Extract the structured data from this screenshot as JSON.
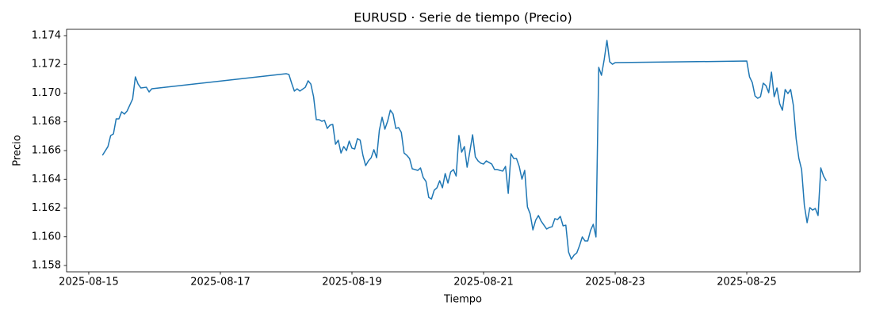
{
  "chart_data": {
    "type": "line",
    "title": "EURUSD · Serie de tiempo (Precio)",
    "xlabel": "Tiempo",
    "ylabel": "Precio",
    "color": "#1f77b4",
    "x": [
      "2025-08-15 05:00",
      "2025-08-15 07:00",
      "2025-08-15 08:00",
      "2025-08-15 09:00",
      "2025-08-15 10:00",
      "2025-08-15 11:00",
      "2025-08-15 12:00",
      "2025-08-15 13:00",
      "2025-08-15 14:00",
      "2025-08-15 16:00",
      "2025-08-15 17:00",
      "2025-08-15 18:00",
      "2025-08-15 19:00",
      "2025-08-15 21:00",
      "2025-08-15 22:00",
      "2025-08-15 23:00",
      "2025-08-18 00:00",
      "2025-08-18 01:00",
      "2025-08-18 02:00",
      "2025-08-18 03:00",
      "2025-08-18 04:00",
      "2025-08-18 05:00",
      "2025-08-18 07:00",
      "2025-08-18 08:00",
      "2025-08-18 09:00",
      "2025-08-18 10:00",
      "2025-08-18 11:00",
      "2025-08-18 12:00",
      "2025-08-18 13:00",
      "2025-08-18 14:00",
      "2025-08-18 15:00",
      "2025-08-18 16:00",
      "2025-08-18 17:00",
      "2025-08-18 18:00",
      "2025-08-18 19:00",
      "2025-08-18 20:00",
      "2025-08-18 21:00",
      "2025-08-18 22:00",
      "2025-08-18 23:00",
      "2025-08-19 00:00",
      "2025-08-19 01:00",
      "2025-08-19 02:00",
      "2025-08-19 03:00",
      "2025-08-19 04:00",
      "2025-08-19 05:00",
      "2025-08-19 06:00",
      "2025-08-19 07:00",
      "2025-08-19 08:00",
      "2025-08-19 09:00",
      "2025-08-19 10:00",
      "2025-08-19 11:00",
      "2025-08-19 12:00",
      "2025-08-19 13:00",
      "2025-08-19 14:00",
      "2025-08-19 15:00",
      "2025-08-19 16:00",
      "2025-08-19 17:00",
      "2025-08-19 18:00",
      "2025-08-19 19:00",
      "2025-08-19 20:00",
      "2025-08-19 21:00",
      "2025-08-19 22:00",
      "2025-08-19 23:00",
      "2025-08-20 00:00",
      "2025-08-20 01:00",
      "2025-08-20 02:00",
      "2025-08-20 03:00",
      "2025-08-20 04:00",
      "2025-08-20 05:00",
      "2025-08-20 06:00",
      "2025-08-20 07:00",
      "2025-08-20 08:00",
      "2025-08-20 09:00",
      "2025-08-20 10:00",
      "2025-08-20 11:00",
      "2025-08-20 12:00",
      "2025-08-20 13:00",
      "2025-08-20 14:00",
      "2025-08-20 15:00",
      "2025-08-20 16:00",
      "2025-08-20 17:00",
      "2025-08-20 18:00",
      "2025-08-20 19:00",
      "2025-08-20 20:00",
      "2025-08-20 21:00",
      "2025-08-20 22:00",
      "2025-08-20 23:00",
      "2025-08-21 00:00",
      "2025-08-21 01:00",
      "2025-08-21 03:00",
      "2025-08-21 04:00",
      "2025-08-21 05:00",
      "2025-08-21 06:00",
      "2025-08-21 07:00",
      "2025-08-21 08:00",
      "2025-08-21 09:00",
      "2025-08-21 10:00",
      "2025-08-21 11:00",
      "2025-08-21 12:00",
      "2025-08-21 13:00",
      "2025-08-21 14:00",
      "2025-08-21 15:00",
      "2025-08-21 16:00",
      "2025-08-21 17:00",
      "2025-08-21 18:00",
      "2025-08-21 19:00",
      "2025-08-21 20:00",
      "2025-08-21 21:00",
      "2025-08-21 23:00",
      "2025-08-22 00:00",
      "2025-08-22 01:00",
      "2025-08-22 02:00",
      "2025-08-22 03:00",
      "2025-08-22 04:00",
      "2025-08-22 05:00",
      "2025-08-22 06:00",
      "2025-08-22 07:00",
      "2025-08-22 08:00",
      "2025-08-22 09:00",
      "2025-08-22 10:00",
      "2025-08-22 11:00",
      "2025-08-22 12:00",
      "2025-08-22 13:00",
      "2025-08-22 14:00",
      "2025-08-22 15:00",
      "2025-08-22 16:00",
      "2025-08-22 17:00",
      "2025-08-22 18:00",
      "2025-08-22 19:00",
      "2025-08-22 20:00",
      "2025-08-22 21:00",
      "2025-08-22 22:00",
      "2025-08-22 23:00",
      "2025-08-23 00:00",
      "2025-08-25 00:00",
      "2025-08-25 01:00",
      "2025-08-25 02:00",
      "2025-08-25 03:00",
      "2025-08-25 04:00",
      "2025-08-25 05:00",
      "2025-08-25 06:00",
      "2025-08-25 07:00",
      "2025-08-25 08:00",
      "2025-08-25 09:00",
      "2025-08-25 10:00",
      "2025-08-25 11:00",
      "2025-08-25 12:00",
      "2025-08-25 13:00",
      "2025-08-25 14:00",
      "2025-08-25 15:00",
      "2025-08-25 16:00",
      "2025-08-25 17:00",
      "2025-08-25 18:00",
      "2025-08-25 19:00",
      "2025-08-25 20:00",
      "2025-08-25 21:00",
      "2025-08-25 22:00",
      "2025-08-25 23:00",
      "2025-08-26 00:00",
      "2025-08-26 01:00",
      "2025-08-26 02:00",
      "2025-08-26 03:00",
      "2025-08-26 04:00",
      "2025-08-26 05:00"
    ],
    "values": [
      1.16567,
      1.16628,
      1.16705,
      1.16716,
      1.16821,
      1.16821,
      1.1687,
      1.16854,
      1.16876,
      1.16959,
      1.17113,
      1.17063,
      1.17036,
      1.17041,
      1.17008,
      1.1703,
      1.17135,
      1.1713,
      1.17069,
      1.17014,
      1.1703,
      1.17014,
      1.17041,
      1.17086,
      1.17063,
      1.16975,
      1.16815,
      1.16815,
      1.16804,
      1.1681,
      1.16754,
      1.16777,
      1.16782,
      1.16644,
      1.16672,
      1.16583,
      1.16628,
      1.166,
      1.16666,
      1.16617,
      1.16611,
      1.16683,
      1.16672,
      1.16567,
      1.16495,
      1.16528,
      1.1655,
      1.16606,
      1.1655,
      1.16743,
      1.16832,
      1.16749,
      1.16804,
      1.16881,
      1.16854,
      1.16754,
      1.1676,
      1.16727,
      1.16583,
      1.16567,
      1.16545,
      1.16473,
      1.16468,
      1.16462,
      1.16479,
      1.16412,
      1.16385,
      1.16274,
      1.16263,
      1.16324,
      1.16341,
      1.1639,
      1.16341,
      1.1644,
      1.16374,
      1.16451,
      1.16468,
      1.16423,
      1.16705,
      1.16589,
      1.16628,
      1.16484,
      1.16594,
      1.1671,
      1.16556,
      1.16528,
      1.16512,
      1.16506,
      1.16528,
      1.16506,
      1.16468,
      1.16468,
      1.16462,
      1.16457,
      1.1649,
      1.16302,
      1.16578,
      1.16545,
      1.16545,
      1.1649,
      1.16401,
      1.16462,
      1.16208,
      1.16159,
      1.16048,
      1.16115,
      1.16148,
      1.16109,
      1.16054,
      1.16065,
      1.1607,
      1.16126,
      1.1612,
      1.16142,
      1.16076,
      1.16081,
      1.15894,
      1.15844,
      1.15872,
      1.15888,
      1.15938,
      1.15999,
      1.15971,
      1.15971,
      1.16043,
      1.16087,
      1.15999,
      1.17179,
      1.17124,
      1.17234,
      1.17367,
      1.17218,
      1.17201,
      1.17212,
      1.17223,
      1.17113,
      1.17074,
      1.16981,
      1.16964,
      1.16975,
      1.17069,
      1.17052,
      1.17003,
      1.17146,
      1.16975,
      1.17036,
      1.16926,
      1.16881,
      1.17025,
      1.16997,
      1.17025,
      1.16914,
      1.16683,
      1.16545,
      1.16468,
      1.16219,
      1.16098,
      1.16203,
      1.16186,
      1.16197,
      1.16148,
      1.16479,
      1.16423,
      1.1639
    ],
    "xlim": [
      "2025-08-14 15:55",
      "2025-08-26 17:20"
    ],
    "xticks": [
      "2025-08-15",
      "2025-08-17",
      "2025-08-19",
      "2025-08-21",
      "2025-08-23",
      "2025-08-25"
    ],
    "ylim": [
      1.15756,
      1.17444
    ],
    "yticks": [
      1.158,
      {
        "value": 1.16,
        "label": "1.160"
      },
      1.162,
      1.164,
      1.166,
      1.168,
      {
        "value": 1.17,
        "label": "1.170"
      },
      1.172,
      1.174
    ],
    "grid": false
  }
}
